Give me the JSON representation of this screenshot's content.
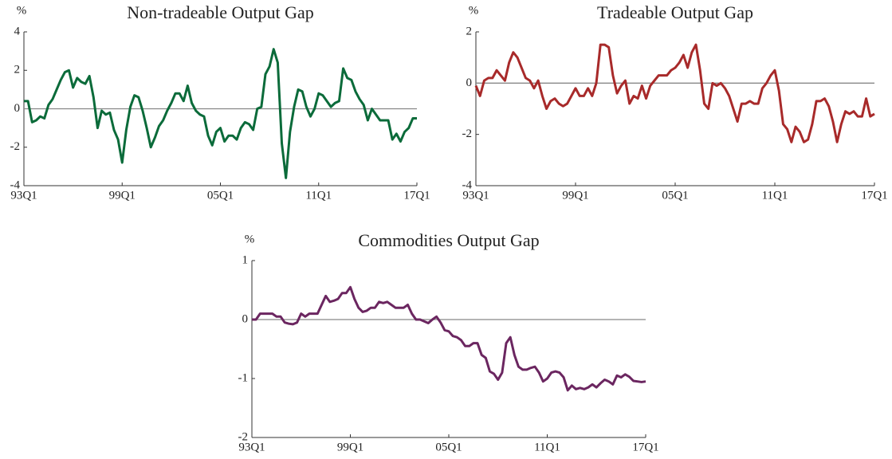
{
  "chart_data": [
    {
      "type": "line",
      "title": "Non-tradeable Output Gap",
      "y_unit": "%",
      "color": "#0b6b3a",
      "categories": [
        "93Q1",
        null,
        null,
        null,
        null,
        null,
        null,
        null,
        null,
        null,
        null,
        null,
        null,
        null,
        null,
        null,
        null,
        null,
        null,
        null,
        null,
        null,
        null,
        null,
        "99Q1",
        null,
        null,
        null,
        null,
        null,
        null,
        null,
        null,
        null,
        null,
        null,
        null,
        null,
        null,
        null,
        null,
        null,
        null,
        null,
        null,
        null,
        null,
        null,
        "05Q1",
        null,
        null,
        null,
        null,
        null,
        null,
        null,
        null,
        null,
        null,
        null,
        null,
        null,
        null,
        null,
        null,
        null,
        null,
        null,
        null,
        null,
        null,
        null,
        "11Q1",
        null,
        null,
        null,
        null,
        null,
        null,
        null,
        null,
        null,
        null,
        null,
        null,
        null,
        null,
        null,
        null,
        null,
        null,
        null,
        null,
        null,
        null,
        null,
        "17Q1"
      ],
      "values": [
        0.4,
        0.4,
        -0.7,
        -0.6,
        -0.4,
        -0.5,
        0.2,
        0.5,
        1.0,
        1.5,
        1.9,
        2.0,
        1.1,
        1.6,
        1.4,
        1.3,
        1.7,
        0.6,
        -1.0,
        -0.1,
        -0.3,
        -0.2,
        -1.1,
        -1.6,
        -2.8,
        -1.1,
        0.1,
        0.7,
        0.6,
        -0.1,
        -1.0,
        -2.0,
        -1.5,
        -0.9,
        -0.6,
        -0.1,
        0.3,
        0.8,
        0.8,
        0.4,
        1.2,
        0.3,
        -0.1,
        -0.3,
        -0.4,
        -1.4,
        -1.9,
        -1.2,
        -1.0,
        -1.7,
        -1.4,
        -1.4,
        -1.6,
        -1.0,
        -0.7,
        -0.8,
        -1.1,
        0.0,
        0.1,
        1.8,
        2.2,
        3.1,
        2.4,
        -1.8,
        -3.6,
        -1.2,
        0.1,
        1.0,
        0.9,
        0.1,
        -0.4,
        0.0,
        0.8,
        0.7,
        0.4,
        0.1,
        0.3,
        0.4,
        2.1,
        1.6,
        1.5,
        0.9,
        0.5,
        0.2,
        -0.6,
        0.0,
        -0.3,
        -0.6,
        -0.6,
        -0.6,
        -1.6,
        -1.3,
        -1.7,
        -1.2,
        -1.0,
        -0.5,
        -0.5
      ],
      "ylim": [
        -4,
        4
      ],
      "yticks": [
        4,
        2,
        0,
        -2,
        -4
      ],
      "hline": 0
    },
    {
      "type": "line",
      "title": "Tradeable Output Gap",
      "y_unit": "%",
      "color": "#a82a2a",
      "categories": [
        "93Q1",
        null,
        null,
        null,
        null,
        null,
        null,
        null,
        null,
        null,
        null,
        null,
        null,
        null,
        null,
        null,
        null,
        null,
        null,
        null,
        null,
        null,
        null,
        null,
        "99Q1",
        null,
        null,
        null,
        null,
        null,
        null,
        null,
        null,
        null,
        null,
        null,
        null,
        null,
        null,
        null,
        null,
        null,
        null,
        null,
        null,
        null,
        null,
        null,
        "05Q1",
        null,
        null,
        null,
        null,
        null,
        null,
        null,
        null,
        null,
        null,
        null,
        null,
        null,
        null,
        null,
        null,
        null,
        null,
        null,
        null,
        null,
        null,
        null,
        "11Q1",
        null,
        null,
        null,
        null,
        null,
        null,
        null,
        null,
        null,
        null,
        null,
        null,
        null,
        null,
        null,
        null,
        null,
        null,
        null,
        null,
        null,
        null,
        null,
        "17Q1"
      ],
      "values": [
        -0.1,
        -0.5,
        0.1,
        0.2,
        0.2,
        0.5,
        0.3,
        0.1,
        0.8,
        1.2,
        1.0,
        0.6,
        0.2,
        0.1,
        -0.2,
        0.1,
        -0.5,
        -1.0,
        -0.7,
        -0.6,
        -0.8,
        -0.9,
        -0.8,
        -0.5,
        -0.2,
        -0.5,
        -0.5,
        -0.2,
        -0.5,
        0.0,
        1.5,
        1.5,
        1.4,
        0.3,
        -0.4,
        -0.1,
        0.1,
        -0.8,
        -0.5,
        -0.6,
        -0.1,
        -0.6,
        -0.1,
        0.1,
        0.3,
        0.3,
        0.3,
        0.5,
        0.6,
        0.8,
        1.1,
        0.6,
        1.2,
        1.5,
        0.5,
        -0.8,
        -1.0,
        0.0,
        -0.1,
        0.0,
        -0.2,
        -0.5,
        -1.0,
        -1.5,
        -0.8,
        -0.8,
        -0.7,
        -0.8,
        -0.8,
        -0.2,
        0.0,
        0.3,
        0.5,
        -0.3,
        -1.6,
        -1.8,
        -2.3,
        -1.7,
        -1.9,
        -2.3,
        -2.2,
        -1.6,
        -0.7,
        -0.7,
        -0.6,
        -0.9,
        -1.5,
        -2.3,
        -1.6,
        -1.1,
        -1.2,
        -1.1,
        -1.3,
        -1.3,
        -0.6,
        -1.3,
        -1.2
      ],
      "ylim": [
        -4,
        2
      ],
      "yticks": [
        2,
        0,
        -2,
        -4
      ],
      "hline": 0
    },
    {
      "type": "line",
      "title": "Commodities Output Gap",
      "y_unit": "%",
      "color": "#6b2660",
      "categories": [
        "93Q1",
        null,
        null,
        null,
        null,
        null,
        null,
        null,
        null,
        null,
        null,
        null,
        null,
        null,
        null,
        null,
        null,
        null,
        null,
        null,
        null,
        null,
        null,
        null,
        "99Q1",
        null,
        null,
        null,
        null,
        null,
        null,
        null,
        null,
        null,
        null,
        null,
        null,
        null,
        null,
        null,
        null,
        null,
        null,
        null,
        null,
        null,
        null,
        null,
        "05Q1",
        null,
        null,
        null,
        null,
        null,
        null,
        null,
        null,
        null,
        null,
        null,
        null,
        null,
        null,
        null,
        null,
        null,
        null,
        null,
        null,
        null,
        null,
        null,
        "11Q1",
        null,
        null,
        null,
        null,
        null,
        null,
        null,
        null,
        null,
        null,
        null,
        null,
        null,
        null,
        null,
        null,
        null,
        null,
        null,
        null,
        null,
        null,
        null,
        "17Q1"
      ],
      "values": [
        0.0,
        0.0,
        0.1,
        0.1,
        0.1,
        0.1,
        0.05,
        0.05,
        -0.05,
        -0.07,
        -0.08,
        -0.05,
        0.1,
        0.05,
        0.1,
        0.1,
        0.1,
        0.25,
        0.4,
        0.3,
        0.32,
        0.35,
        0.45,
        0.45,
        0.55,
        0.35,
        0.2,
        0.13,
        0.15,
        0.2,
        0.2,
        0.3,
        0.28,
        0.3,
        0.25,
        0.2,
        0.2,
        0.2,
        0.25,
        0.1,
        0.0,
        0.0,
        -0.03,
        -0.06,
        0.0,
        0.05,
        -0.05,
        -0.18,
        -0.2,
        -0.28,
        -0.3,
        -0.35,
        -0.45,
        -0.45,
        -0.4,
        -0.4,
        -0.6,
        -0.65,
        -0.88,
        -0.92,
        -1.02,
        -0.9,
        -0.4,
        -0.3,
        -0.6,
        -0.8,
        -0.85,
        -0.85,
        -0.82,
        -0.8,
        -0.9,
        -1.05,
        -1.0,
        -0.9,
        -0.88,
        -0.9,
        -0.98,
        -1.2,
        -1.12,
        -1.18,
        -1.16,
        -1.18,
        -1.15,
        -1.1,
        -1.15,
        -1.08,
        -1.02,
        -1.05,
        -1.1,
        -0.95,
        -0.98,
        -0.93,
        -0.97,
        -1.04,
        -1.05,
        -1.06,
        -1.05
      ],
      "ylim": [
        -2,
        1
      ],
      "yticks": [
        1,
        0,
        -1,
        -2
      ],
      "hline": 0
    }
  ]
}
